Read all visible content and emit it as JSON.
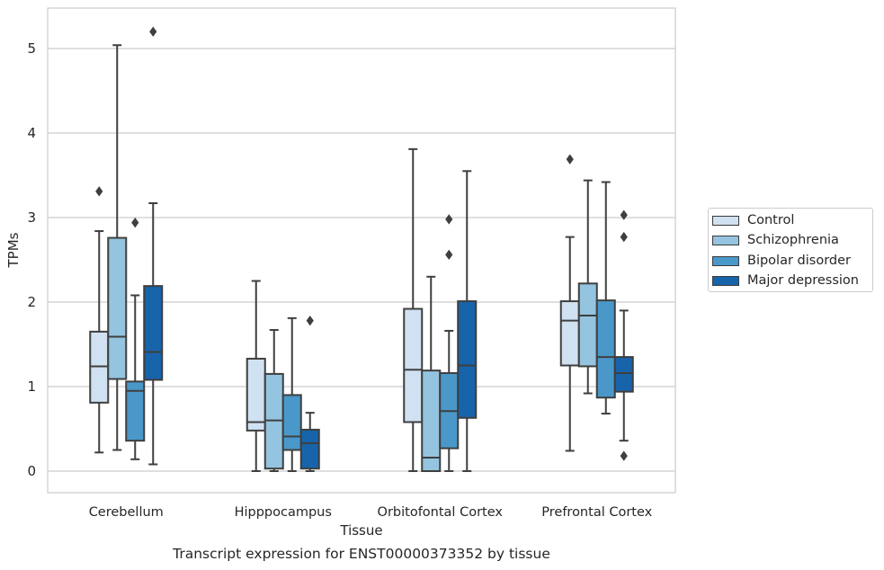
{
  "chart_data": {
    "type": "boxplot",
    "title": "Transcript expression for ENST00000373352 by tissue",
    "xlabel": "Tissue",
    "ylabel": "TPMs",
    "categories": [
      "Cerebellum",
      "Hipppocampus",
      "Orbitofontal Cortex",
      "Prefrontal Cortex"
    ],
    "ylim": [
      -0.25,
      5.5
    ],
    "yticks": [
      0,
      1,
      2,
      3,
      4,
      5
    ],
    "grid": "horizontal",
    "legend_position": "right",
    "series": [
      {
        "name": "Control",
        "color": "#d0e1f2",
        "boxes": [
          {
            "whisker_low": 0.22,
            "q1": 0.81,
            "median": 1.24,
            "q3": 1.65,
            "whisker_high": 2.84,
            "outliers": [
              3.31
            ]
          },
          {
            "whisker_low": 0.0,
            "q1": 0.48,
            "median": 0.58,
            "q3": 1.33,
            "whisker_high": 2.25,
            "outliers": []
          },
          {
            "whisker_low": 0.0,
            "q1": 0.58,
            "median": 1.2,
            "q3": 1.92,
            "whisker_high": 3.81,
            "outliers": []
          },
          {
            "whisker_low": 0.24,
            "q1": 1.25,
            "median": 1.78,
            "q3": 2.01,
            "whisker_high": 2.77,
            "outliers": [
              3.69
            ]
          }
        ]
      },
      {
        "name": "Schizophrenia",
        "color": "#94c4df",
        "boxes": [
          {
            "whisker_low": 0.25,
            "q1": 1.09,
            "median": 1.59,
            "q3": 2.76,
            "whisker_high": 5.04,
            "outliers": []
          },
          {
            "whisker_low": 0.0,
            "q1": 0.03,
            "median": 0.6,
            "q3": 1.15,
            "whisker_high": 1.67,
            "outliers": []
          },
          {
            "whisker_low": 0.0,
            "q1": 0.0,
            "median": 0.16,
            "q3": 1.19,
            "whisker_high": 2.3,
            "outliers": []
          },
          {
            "whisker_low": 0.92,
            "q1": 1.24,
            "median": 1.84,
            "q3": 2.22,
            "whisker_high": 3.44,
            "outliers": []
          }
        ]
      },
      {
        "name": "Bipolar disorder",
        "color": "#4a98c9",
        "boxes": [
          {
            "whisker_low": 0.14,
            "q1": 0.36,
            "median": 0.95,
            "q3": 1.06,
            "whisker_high": 2.08,
            "outliers": [
              2.94
            ]
          },
          {
            "whisker_low": 0.0,
            "q1": 0.25,
            "median": 0.41,
            "q3": 0.9,
            "whisker_high": 1.81,
            "outliers": []
          },
          {
            "whisker_low": 0.0,
            "q1": 0.27,
            "median": 0.71,
            "q3": 1.16,
            "whisker_high": 1.66,
            "outliers": [
              2.56,
              2.98
            ]
          },
          {
            "whisker_low": 0.68,
            "q1": 0.87,
            "median": 1.35,
            "q3": 2.02,
            "whisker_high": 3.42,
            "outliers": []
          }
        ]
      },
      {
        "name": "Major depression",
        "color": "#1764ab",
        "boxes": [
          {
            "whisker_low": 0.08,
            "q1": 1.08,
            "median": 1.41,
            "q3": 2.19,
            "whisker_high": 3.17,
            "outliers": [
              5.2
            ]
          },
          {
            "whisker_low": 0.0,
            "q1": 0.03,
            "median": 0.33,
            "q3": 0.49,
            "whisker_high": 0.69,
            "outliers": [
              1.78
            ]
          },
          {
            "whisker_low": 0.0,
            "q1": 0.63,
            "median": 1.25,
            "q3": 2.01,
            "whisker_high": 3.55,
            "outliers": []
          },
          {
            "whisker_low": 0.36,
            "q1": 0.94,
            "median": 1.16,
            "q3": 1.35,
            "whisker_high": 1.9,
            "outliers": [
              0.18,
              2.77,
              3.03
            ]
          }
        ]
      }
    ]
  }
}
